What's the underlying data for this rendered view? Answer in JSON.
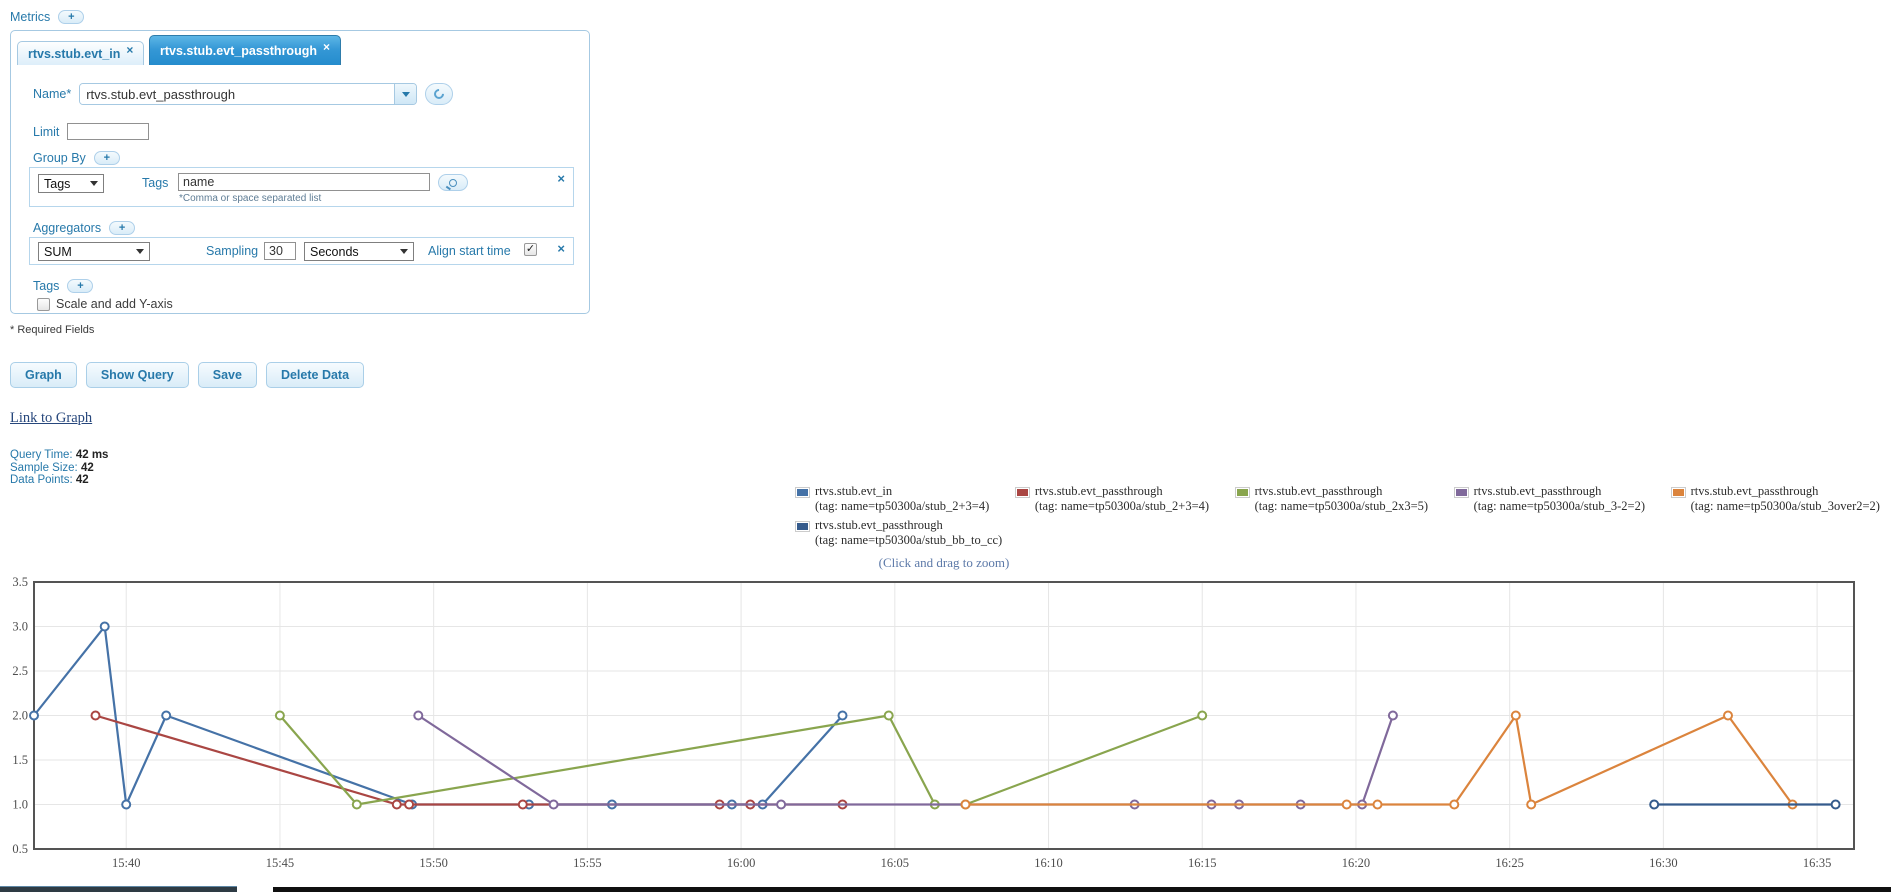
{
  "icons": {
    "plus": "+",
    "close": "×",
    "check": "✓"
  },
  "metrics_section": {
    "label": "Metrics"
  },
  "tabs": [
    {
      "label": "rtvs.stub.evt_in",
      "active": false
    },
    {
      "label": "rtvs.stub.evt_passthrough",
      "active": true
    }
  ],
  "form": {
    "name": {
      "label": "Name*",
      "value": "rtvs.stub.evt_passthrough"
    },
    "limit": {
      "label": "Limit",
      "value": ""
    },
    "group_by": {
      "label": "Group By",
      "type_selected": "Tags",
      "tags_label": "Tags",
      "tags_value": "name",
      "hint": "*Comma or space separated list"
    },
    "aggregators": {
      "label": "Aggregators",
      "function_selected": "SUM",
      "sampling_label": "Sampling",
      "sampling_value": "30",
      "unit_selected": "Seconds",
      "align_label": "Align start time",
      "align_checked": true
    },
    "tags": {
      "label": "Tags"
    },
    "scale": {
      "label": "Scale and add Y-axis",
      "checked": false
    },
    "required_note": "* Required Fields"
  },
  "buttons": {
    "graph": "Graph",
    "show_query": "Show Query",
    "save": "Save",
    "delete_data": "Delete Data"
  },
  "link_to_graph": "Link to Graph",
  "stats": {
    "query_time_label": "Query Time:",
    "query_time_value": "42 ms",
    "sample_size_label": "Sample Size:",
    "sample_size_value": "42",
    "data_points_label": "Data Points:",
    "data_points_value": "42"
  },
  "chart_data": {
    "type": "line",
    "zoom_note": "(Click and drag to zoom)",
    "x_axis": {
      "kind": "time-of-day",
      "tick_labels": [
        "15:40",
        "15:45",
        "15:50",
        "15:55",
        "16:00",
        "16:05",
        "16:10",
        "16:15",
        "16:20",
        "16:25",
        "16:30",
        "16:35"
      ],
      "tick_minutes": [
        40,
        45,
        50,
        55,
        60,
        65,
        70,
        75,
        80,
        85,
        90,
        95
      ],
      "range_minutes_after_1500": [
        37.0,
        96.2
      ]
    },
    "y_axis": {
      "tick_labels": [
        "0.5",
        "1.0",
        "1.5",
        "2.0",
        "2.5",
        "3.0",
        "3.5"
      ],
      "ticks": [
        0.5,
        1.0,
        1.5,
        2.0,
        2.5,
        3.0,
        3.5
      ],
      "range": [
        0.5,
        3.5
      ]
    },
    "grid": true,
    "legend_position": "top-right",
    "series": [
      {
        "name": "rtvs.stub.evt_in",
        "tag": "(tag: name=tp50300a/stub_2+3=4)",
        "color": "#4572A7",
        "points": [
          [
            37.0,
            2
          ],
          [
            39.3,
            3
          ],
          [
            40.0,
            1
          ],
          [
            41.3,
            2
          ],
          [
            49.3,
            1
          ],
          [
            53.1,
            1
          ],
          [
            55.8,
            1
          ],
          [
            59.7,
            1
          ],
          [
            60.7,
            1
          ],
          [
            63.3,
            2
          ]
        ]
      },
      {
        "name": "rtvs.stub.evt_passthrough",
        "tag": "(tag: name=tp50300a/stub_2+3=4)",
        "color": "#AA4643",
        "points": [
          [
            39.0,
            2
          ],
          [
            48.8,
            1
          ],
          [
            49.2,
            1
          ],
          [
            52.9,
            1
          ],
          [
            59.3,
            1
          ],
          [
            60.3,
            1
          ],
          [
            63.3,
            1
          ]
        ]
      },
      {
        "name": "rtvs.stub.evt_passthrough",
        "tag": "(tag: name=tp50300a/stub_2x3=5)",
        "color": "#89A54E",
        "points": [
          [
            45.0,
            2
          ],
          [
            47.5,
            1
          ],
          [
            64.8,
            2
          ],
          [
            66.3,
            1
          ],
          [
            67.3,
            1
          ],
          [
            75.0,
            2
          ]
        ]
      },
      {
        "name": "rtvs.stub.evt_passthrough",
        "tag": "(tag: name=tp50300a/stub_3-2=2)",
        "color": "#80699B",
        "points": [
          [
            49.5,
            2
          ],
          [
            53.9,
            1
          ],
          [
            61.3,
            1
          ],
          [
            72.8,
            1
          ],
          [
            75.3,
            1
          ],
          [
            76.2,
            1
          ],
          [
            78.2,
            1
          ],
          [
            80.2,
            1
          ],
          [
            81.2,
            2
          ]
        ]
      },
      {
        "name": "rtvs.stub.evt_passthrough",
        "tag": "(tag: name=tp50300a/stub_3over2=2)",
        "color": "#DB843D",
        "points": [
          [
            67.3,
            1
          ],
          [
            79.7,
            1
          ],
          [
            80.7,
            1
          ],
          [
            83.2,
            1
          ],
          [
            85.2,
            2
          ],
          [
            85.7,
            1
          ],
          [
            92.1,
            2
          ],
          [
            94.2,
            1
          ]
        ]
      },
      {
        "name": "rtvs.stub.evt_passthrough",
        "tag": "(tag: name=tp50300a/stub_bb_to_cc)",
        "color": "#355B8C",
        "points": [
          [
            89.7,
            1
          ],
          [
            95.6,
            1
          ]
        ]
      }
    ]
  }
}
